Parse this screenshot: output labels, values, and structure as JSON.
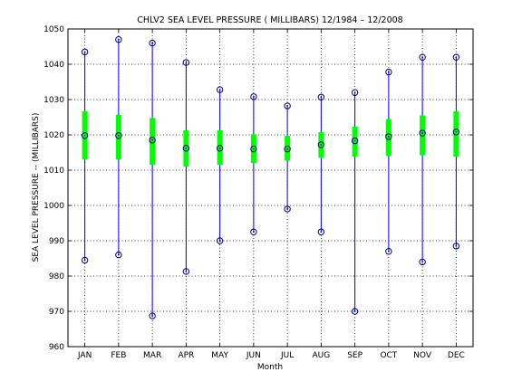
{
  "chart_data": {
    "type": "boxplot",
    "title": "CHLV2  SEA LEVEL PRESSURE ( MILLIBARS) 12/1984 – 12/2008",
    "xlabel": "Month",
    "ylabel": "SEA LEVEL PRESSURE -- (MILLIBARS)",
    "ylim": [
      960,
      1050
    ],
    "yticks": [
      "960",
      "970",
      "980",
      "990",
      "1000",
      "1010",
      "1020",
      "1030",
      "1040",
      "1050"
    ],
    "grid": true,
    "categories": [
      "JAN",
      "FEB",
      "MAR",
      "APR",
      "MAY",
      "JUN",
      "JUL",
      "AUG",
      "SEP",
      "OCT",
      "NOV",
      "DEC"
    ],
    "max": [
      1043.5,
      1047.0,
      1046.0,
      1040.5,
      1032.8,
      1030.8,
      1028.2,
      1030.7,
      1032.0,
      1037.8,
      1042.0,
      1042.0
    ],
    "q3": [
      1026.7,
      1025.7,
      1024.8,
      1021.3,
      1021.3,
      1020.2,
      1019.7,
      1020.8,
      1022.3,
      1024.5,
      1025.5,
      1026.7
    ],
    "median": [
      1019.8,
      1019.8,
      1018.5,
      1016.2,
      1016.2,
      1016.0,
      1016.0,
      1017.2,
      1018.3,
      1019.5,
      1020.5,
      1020.8
    ],
    "q1": [
      1013.0,
      1013.0,
      1011.5,
      1011.0,
      1011.5,
      1012.0,
      1012.7,
      1013.5,
      1013.8,
      1014.0,
      1014.2,
      1013.8
    ],
    "min": [
      984.5,
      986.0,
      968.7,
      981.3,
      990.0,
      992.5,
      999.0,
      992.5,
      970.0,
      987.0,
      984.0,
      988.5
    ],
    "colors": {
      "whisker": "#0000ff",
      "box": "#00ff00",
      "marker": "#000080",
      "grid": "#000000"
    }
  }
}
